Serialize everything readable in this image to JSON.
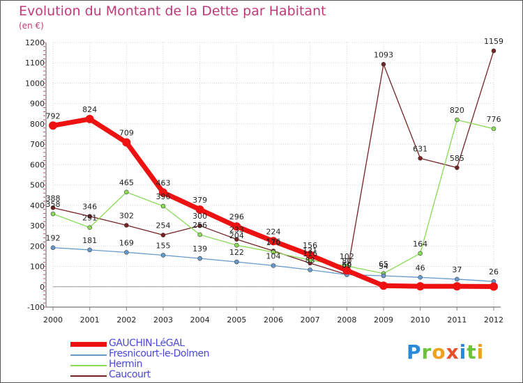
{
  "title": "Evolution du Montant de la Dette par Habitant",
  "subtitle": "(en €)",
  "logo": {
    "text": "Proxiti",
    "colors": [
      "#2a8ad8",
      "#6cc23a",
      "#f0a020",
      "#e8502a",
      "#2a8ad8",
      "#6cc23a",
      "#f0a020"
    ]
  },
  "chart_data": {
    "type": "line",
    "x": [
      2000,
      2001,
      2002,
      2003,
      2004,
      2005,
      2006,
      2007,
      2008,
      2009,
      2010,
      2011,
      2012
    ],
    "ylim": [
      -100,
      1200
    ],
    "yticks": [
      -100,
      0,
      100,
      200,
      300,
      400,
      500,
      600,
      700,
      800,
      900,
      1000,
      1100,
      1200
    ],
    "grid": true,
    "legend_position": "bottom-left",
    "series": [
      {
        "name": "GAUCHIN-LéGAL",
        "color": "#ee1111",
        "values": [
          792,
          824,
          709,
          463,
          379,
          296,
          224,
          156,
          80,
          5,
          2,
          2,
          1
        ],
        "labels": [
          "792",
          "824",
          "709",
          "463",
          "379",
          "296",
          "224",
          "156",
          "80",
          "",
          "",
          "",
          ""
        ]
      },
      {
        "name": "Fresnicourt-le-Dolmen",
        "color": "#6699cc",
        "values": [
          192,
          181,
          169,
          155,
          139,
          122,
          104,
          83,
          59,
          54,
          46,
          37,
          26
        ],
        "labels": [
          "192",
          "181",
          "169",
          "155",
          "139",
          "122",
          "104",
          "83",
          "59",
          "54",
          "46",
          "37",
          "26"
        ]
      },
      {
        "name": "Hermin",
        "color": "#88dd55",
        "values": [
          358,
          291,
          465,
          396,
          256,
          204,
          170,
          131,
          102,
          65,
          164,
          820,
          776
        ],
        "labels": [
          "358",
          "291",
          "465",
          "396",
          "256",
          "204",
          "170",
          "131",
          "102",
          "65",
          "164",
          "820",
          "776"
        ]
      },
      {
        "name": "Caucourt",
        "color": "#772222",
        "values": [
          388,
          346,
          302,
          254,
          300,
          233,
          176,
          116,
          60,
          1093,
          631,
          585,
          1159
        ],
        "labels": [
          "388",
          "346",
          "302",
          "254",
          "300",
          "233",
          "176",
          "116",
          "60",
          "1093",
          "631",
          "585",
          "1159"
        ]
      }
    ]
  }
}
